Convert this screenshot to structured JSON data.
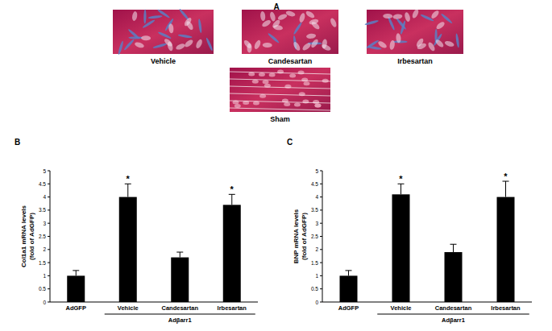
{
  "figure": {
    "panel_labels": [
      "A",
      "B",
      "C"
    ],
    "images": [
      "Vehicle",
      "Candesartan",
      "Irbesartan",
      "Sham"
    ]
  },
  "chart_data": [
    {
      "type": "bar",
      "y_label": [
        "Col1a1 mRNA levels",
        "(fold of AdGFP)"
      ],
      "categories": [
        "AdGFP",
        "Vehicle",
        "Candesartan",
        "Irbesartan"
      ],
      "values": [
        1.0,
        4.0,
        1.7,
        3.7
      ],
      "errors": [
        0.2,
        0.5,
        0.2,
        0.4
      ],
      "color": "#000000",
      "ylim": [
        0,
        5
      ],
      "yticks": [
        0,
        0.5,
        1,
        1.5,
        2,
        2.5,
        3,
        3.5,
        4,
        4.5,
        5
      ],
      "groups": [
        {
          "label": "Adβarr1",
          "from": 1,
          "to": 3
        }
      ],
      "annotations": [
        {
          "text": "*",
          "category": 1
        },
        {
          "text": "*",
          "category": 3
        }
      ]
    },
    {
      "type": "bar",
      "y_label": [
        "BNP mRNA levels",
        "(fold of AdGFP)"
      ],
      "categories": [
        "AdGFP",
        "Vehicle",
        "Candesartan",
        "Irbesartan"
      ],
      "values": [
        1.0,
        4.1,
        1.9,
        4.0
      ],
      "errors": [
        0.2,
        0.4,
        0.3,
        0.6
      ],
      "color": "#000000",
      "ylim": [
        0,
        5
      ],
      "yticks": [
        0,
        0.5,
        1,
        1.5,
        2,
        2.5,
        3,
        3.5,
        4,
        4.5,
        5
      ],
      "groups": [
        {
          "label": "Adβarr1",
          "from": 1,
          "to": 3
        }
      ],
      "annotations": [
        {
          "text": "*",
          "category": 1
        },
        {
          "text": "*",
          "category": 3
        }
      ]
    }
  ]
}
